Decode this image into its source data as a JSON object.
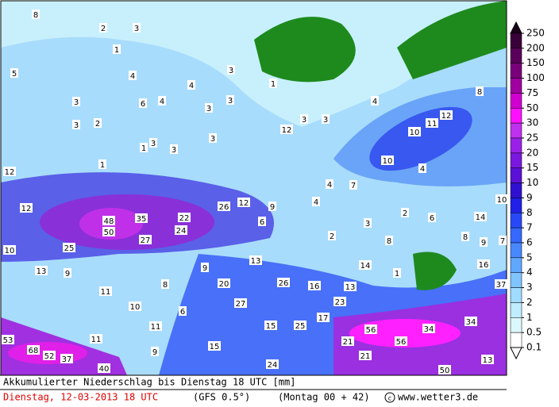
{
  "header": {
    "title": "Akkumulierter Niederschlag bis Dienstag 18 UTC [mm]",
    "date": "Dienstag, 12-03-2013  18 UTC",
    "model": "(GFS 0.5°)",
    "run": "(Montag 00 + 42)",
    "source": "www.wetter3.de"
  },
  "legend": {
    "levels": [
      250,
      200,
      150,
      100,
      75,
      50,
      30,
      25,
      20,
      15,
      10,
      9,
      8,
      7,
      6,
      5,
      4,
      3,
      2,
      1,
      0.5,
      0.1
    ],
    "colors": [
      "#1a001a",
      "#3a003a",
      "#5a005a",
      "#7a007a",
      "#a000a0",
      "#d000d0",
      "#ff10ff",
      "#c030f0",
      "#9a20e8",
      "#7a18e0",
      "#5a10d8",
      "#3010d0",
      "#2020e8",
      "#2848f8",
      "#3468ff",
      "#4888ff",
      "#60a8ff",
      "#80c4ff",
      "#a0dcff",
      "#c0ecff",
      "#dcf8ff",
      "#ffffff"
    ]
  },
  "map_labels": [
    8,
    2,
    3,
    1,
    5,
    4,
    6,
    4,
    4,
    3,
    3,
    3,
    1,
    3,
    3,
    2,
    1,
    1,
    3,
    3,
    3,
    3,
    3,
    12,
    4,
    8,
    12,
    11,
    10,
    10,
    4,
    12,
    12,
    48,
    50,
    35,
    22,
    24,
    27,
    26,
    12,
    9,
    6,
    4,
    7,
    4,
    2,
    6,
    3,
    14,
    10,
    8,
    9,
    7,
    2,
    8,
    10,
    25,
    13,
    14,
    1,
    16,
    13,
    9,
    9,
    8,
    20,
    26,
    16,
    13,
    37,
    11,
    10,
    6,
    27,
    23,
    17,
    25,
    15,
    11,
    56,
    34,
    34,
    53,
    11,
    21,
    56,
    68,
    52,
    37,
    9,
    15,
    21,
    13,
    40,
    24,
    50
  ]
}
